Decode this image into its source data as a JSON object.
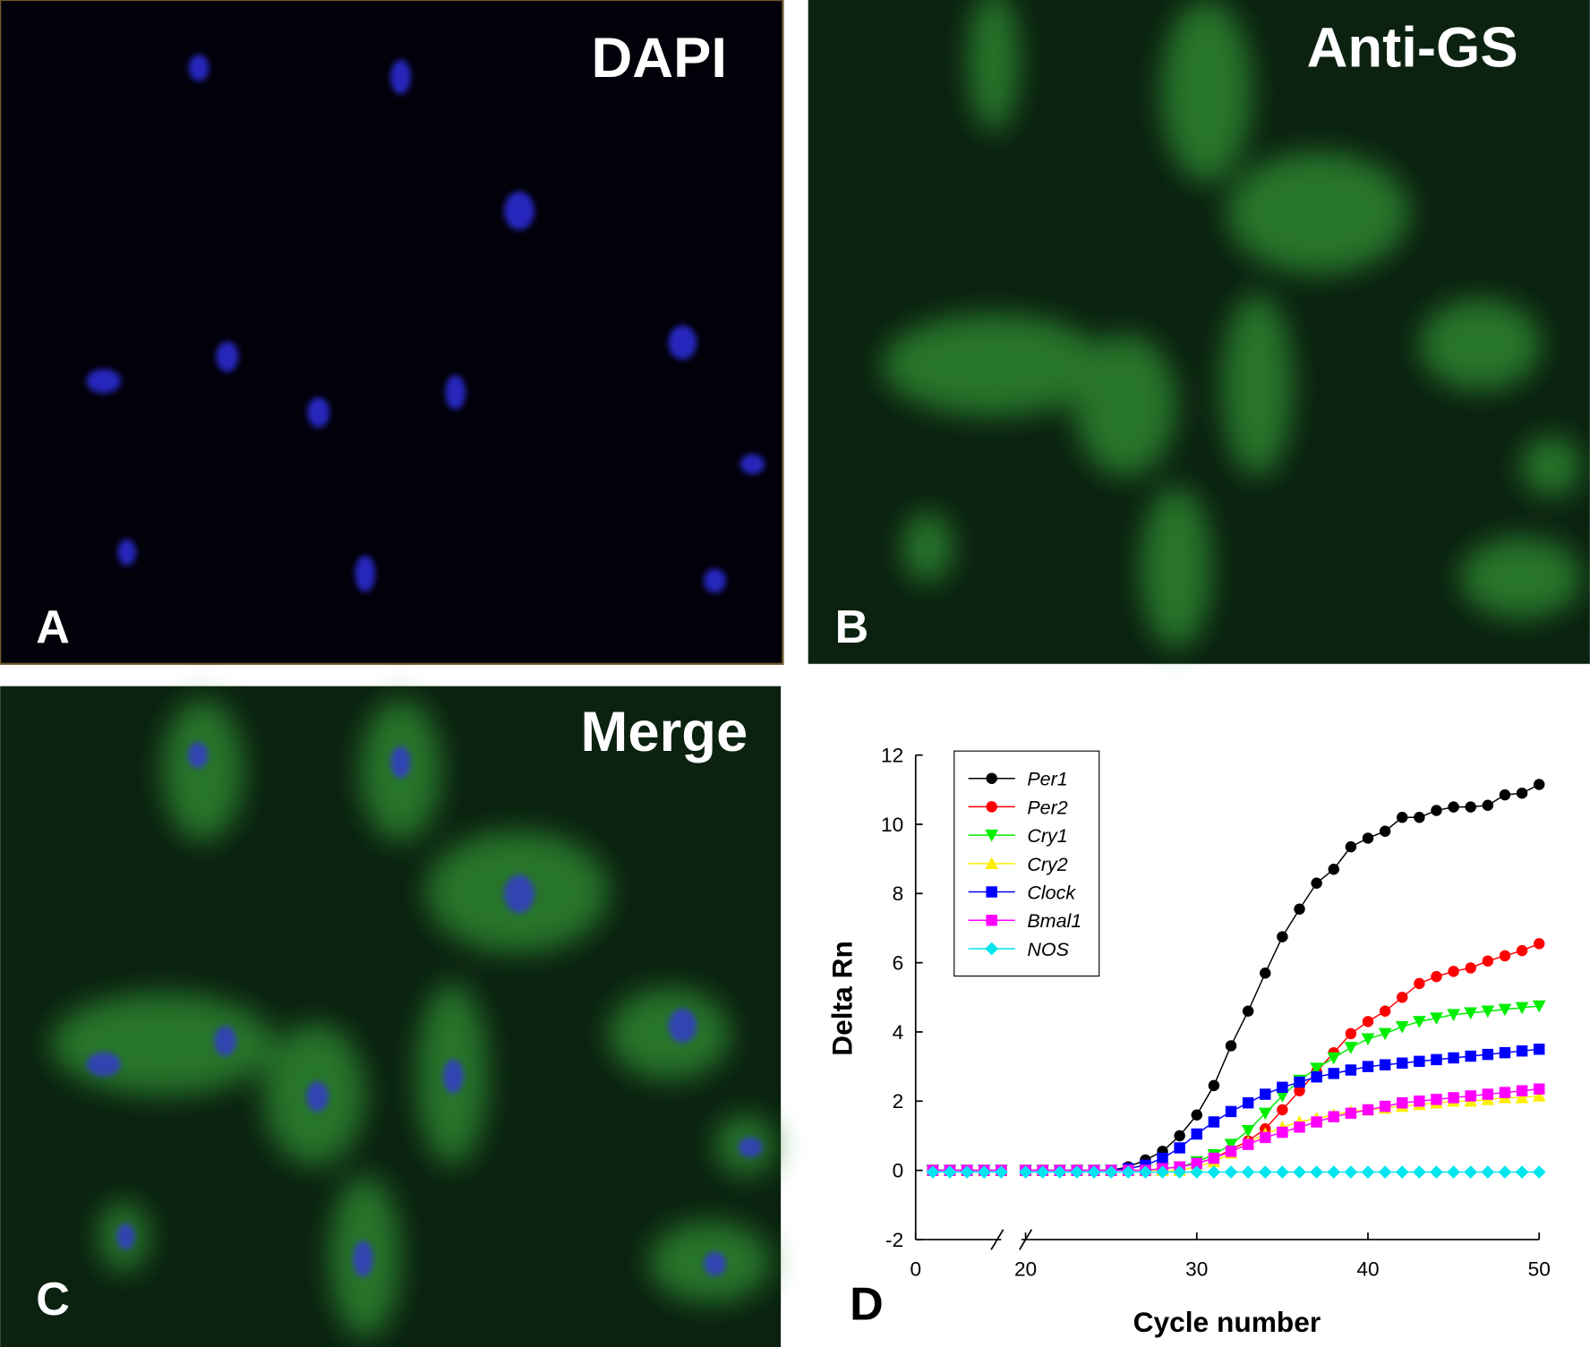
{
  "panels": [
    {
      "title": "DAPI",
      "letter": "A"
    },
    {
      "title": "Anti-GS",
      "letter": "B"
    },
    {
      "title": "Merge",
      "letter": "C"
    }
  ],
  "chart_data": {
    "type": "line",
    "panel_label": "D",
    "x_label": "Cycle number",
    "y_label": "Delta Rn",
    "x": [
      1,
      2,
      3,
      4,
      5,
      20,
      21,
      22,
      23,
      24,
      25,
      26,
      27,
      28,
      29,
      30,
      31,
      32,
      33,
      34,
      35,
      36,
      37,
      38,
      39,
      40,
      41,
      42,
      43,
      44,
      45,
      46,
      47,
      48,
      49,
      50
    ],
    "xlim": [
      0,
      50
    ],
    "x_break": [
      5,
      20
    ],
    "xticks": [
      0,
      20,
      30,
      40,
      50
    ],
    "ylim": [
      -2,
      12
    ],
    "yticks": [
      -2,
      0,
      2,
      4,
      6,
      8,
      10,
      12
    ],
    "legend": "upper-left",
    "series": [
      {
        "name": "Per1",
        "color": "#000000",
        "marker": "circle",
        "values": [
          0,
          0,
          0,
          0,
          0,
          0,
          0,
          0,
          0,
          0,
          0,
          0.1,
          0.3,
          0.55,
          1.0,
          1.6,
          2.45,
          3.6,
          4.6,
          5.7,
          6.75,
          7.55,
          8.3,
          8.7,
          9.35,
          9.6,
          9.8,
          10.2,
          10.2,
          10.4,
          10.5,
          10.5,
          10.55,
          10.85,
          10.9,
          11.15
        ]
      },
      {
        "name": "Per2",
        "color": "#ff0000",
        "marker": "circle",
        "values": [
          0,
          0,
          0,
          0,
          0,
          0,
          0,
          0,
          0,
          0,
          0,
          0,
          0,
          0.05,
          0.1,
          0.2,
          0.35,
          0.6,
          0.85,
          1.2,
          1.75,
          2.3,
          2.85,
          3.4,
          3.95,
          4.3,
          4.6,
          5.0,
          5.4,
          5.6,
          5.75,
          5.85,
          6.05,
          6.2,
          6.35,
          6.55
        ]
      },
      {
        "name": "Cry1",
        "color": "#00ee00",
        "marker": "triangle-down",
        "values": [
          0,
          0,
          0,
          0,
          0,
          0,
          0,
          0,
          0,
          0,
          0,
          0,
          0,
          0.05,
          0.1,
          0.25,
          0.45,
          0.75,
          1.15,
          1.65,
          2.15,
          2.6,
          2.95,
          3.25,
          3.55,
          3.8,
          3.95,
          4.15,
          4.3,
          4.4,
          4.5,
          4.55,
          4.6,
          4.65,
          4.7,
          4.75
        ]
      },
      {
        "name": "Cry2",
        "color": "#ffee00",
        "marker": "triangle-up",
        "values": [
          0,
          0,
          0,
          0,
          0,
          0,
          0,
          0,
          0,
          0,
          0,
          0,
          0,
          0,
          0,
          0.1,
          0.25,
          0.5,
          0.8,
          1.05,
          1.25,
          1.4,
          1.5,
          1.6,
          1.7,
          1.75,
          1.8,
          1.85,
          1.9,
          1.95,
          2.0,
          2.0,
          2.05,
          2.1,
          2.1,
          2.15
        ]
      },
      {
        "name": "Clock",
        "color": "#0000ff",
        "marker": "square",
        "values": [
          0,
          0,
          0,
          0,
          0,
          0,
          0,
          0,
          0,
          0,
          0,
          0.05,
          0.15,
          0.35,
          0.65,
          1.05,
          1.4,
          1.7,
          1.95,
          2.2,
          2.4,
          2.55,
          2.7,
          2.8,
          2.9,
          3.0,
          3.05,
          3.1,
          3.15,
          3.2,
          3.25,
          3.3,
          3.35,
          3.4,
          3.45,
          3.5
        ]
      },
      {
        "name": "Bmal1",
        "color": "#ff00ff",
        "marker": "square",
        "values": [
          0,
          0,
          0,
          0,
          0,
          0,
          0,
          0,
          0,
          0,
          0,
          0,
          0,
          0.05,
          0.1,
          0.2,
          0.35,
          0.55,
          0.75,
          0.95,
          1.1,
          1.25,
          1.4,
          1.55,
          1.65,
          1.75,
          1.85,
          1.95,
          2.0,
          2.05,
          2.1,
          2.15,
          2.2,
          2.25,
          2.3,
          2.35
        ]
      },
      {
        "name": "NOS",
        "color": "#00e5ee",
        "marker": "diamond",
        "values": [
          -0.05,
          -0.05,
          -0.05,
          -0.05,
          -0.05,
          -0.05,
          -0.05,
          -0.05,
          -0.05,
          -0.05,
          -0.05,
          -0.05,
          -0.05,
          -0.05,
          -0.05,
          -0.05,
          -0.05,
          -0.05,
          -0.05,
          -0.05,
          -0.05,
          -0.05,
          -0.05,
          -0.05,
          -0.05,
          -0.05,
          -0.05,
          -0.05,
          -0.05,
          -0.05,
          -0.05,
          -0.05,
          -0.05,
          -0.05,
          -0.05,
          -0.05
        ]
      }
    ]
  }
}
